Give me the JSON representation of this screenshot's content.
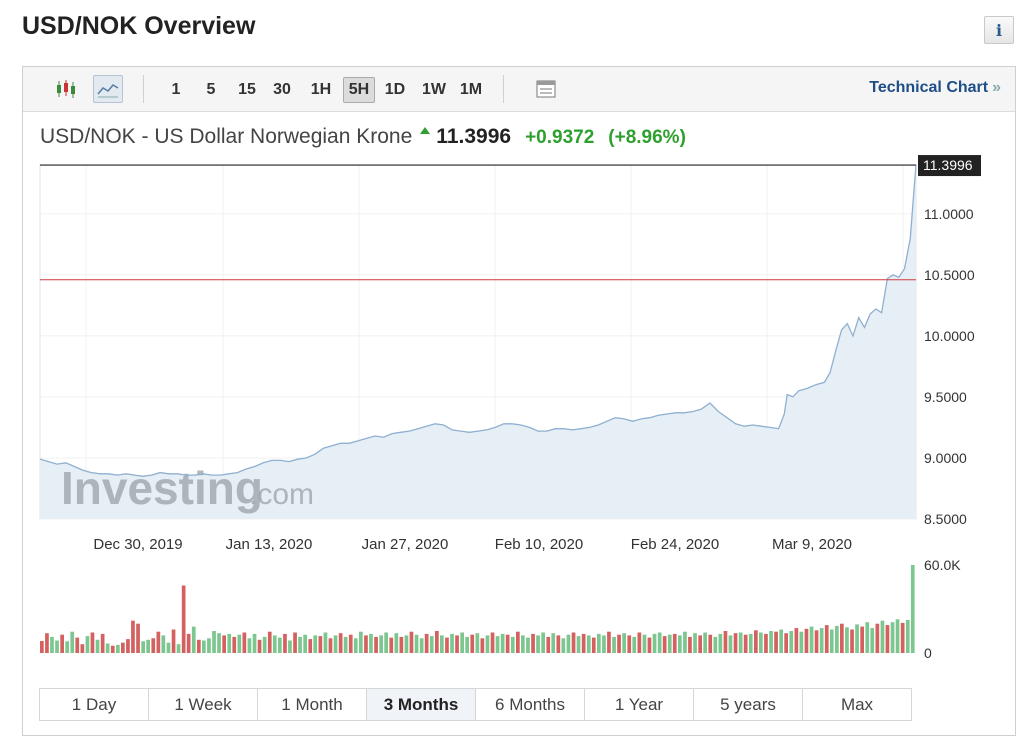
{
  "header": {
    "title": "USD/NOK Overview",
    "info_icon": "info-icon"
  },
  "toolbar": {
    "chart_types": [
      {
        "icon": "candlestick-icon",
        "active": false
      },
      {
        "icon": "line-chart-icon",
        "active": true
      }
    ],
    "intervals": [
      {
        "label": "1",
        "active": false
      },
      {
        "label": "5",
        "active": false
      },
      {
        "label": "15",
        "active": false
      },
      {
        "label": "30",
        "active": false
      },
      {
        "label": "1H",
        "active": false
      },
      {
        "label": "5H",
        "active": true
      },
      {
        "label": "1D",
        "active": false
      },
      {
        "label": "1W",
        "active": false
      },
      {
        "label": "1M",
        "active": false
      }
    ],
    "settings_icon": "table-settings-icon",
    "technical_link": "Technical Chart",
    "technical_link_suffix": "»"
  },
  "instrument": {
    "name": "USD/NOK - US Dollar Norwegian Krone",
    "last": "11.3996",
    "change": "+0.9372",
    "change_pct": "(+8.96%)"
  },
  "watermark": {
    "brand": "Investing",
    "suffix": ".com"
  },
  "colors": {
    "line": "#8fb0d0",
    "area": "#e6eef6",
    "ref_line": "#d23a3a",
    "up_vol": "#7cc68f",
    "down_vol": "#d4615f",
    "last_price_bg": "#222222"
  },
  "chart_data": {
    "type": "line",
    "title": "USD/NOK - US Dollar Norwegian Krone",
    "y_axis": {
      "ticks": [
        "11.0000",
        "10.5000",
        "10.0000",
        "9.5000",
        "9.0000",
        "8.5000"
      ],
      "min": 8.5,
      "max": 11.4
    },
    "x_axis": {
      "ticks": [
        "Dec 30, 2019",
        "Jan 13, 2020",
        "Jan 27, 2020",
        "Feb 10, 2020",
        "Feb 24, 2020",
        "Mar 9, 2020"
      ]
    },
    "last_price_label": "11.3996",
    "reference_value": 10.46,
    "grid": true,
    "series": [
      {
        "values": [
          [
            0,
            8.99
          ],
          [
            3,
            8.97
          ],
          [
            6,
            8.95
          ],
          [
            9,
            8.96
          ],
          [
            12,
            8.93
          ],
          [
            15,
            8.9
          ],
          [
            18,
            8.88
          ],
          [
            21,
            8.87
          ],
          [
            24,
            8.87
          ],
          [
            27,
            8.86
          ],
          [
            30,
            8.87
          ],
          [
            33,
            8.86
          ],
          [
            36,
            8.85
          ],
          [
            39,
            8.86
          ],
          [
            42,
            8.88
          ],
          [
            45,
            8.87
          ],
          [
            48,
            8.87
          ],
          [
            51,
            8.86
          ],
          [
            54,
            8.86
          ],
          [
            57,
            8.87
          ],
          [
            60,
            8.86
          ],
          [
            63,
            8.86
          ],
          [
            66,
            8.87
          ],
          [
            69,
            8.88
          ],
          [
            72,
            8.91
          ],
          [
            75,
            8.93
          ],
          [
            78,
            8.96
          ],
          [
            81,
            8.98
          ],
          [
            84,
            8.98
          ],
          [
            87,
            8.97
          ],
          [
            90,
            8.99
          ],
          [
            93,
            9.0
          ],
          [
            96,
            9.03
          ],
          [
            99,
            9.08
          ],
          [
            102,
            9.1
          ],
          [
            105,
            9.12
          ],
          [
            108,
            9.12
          ],
          [
            111,
            9.14
          ],
          [
            114,
            9.16
          ],
          [
            117,
            9.18
          ],
          [
            120,
            9.17
          ],
          [
            123,
            9.2
          ],
          [
            126,
            9.21
          ],
          [
            129,
            9.22
          ],
          [
            132,
            9.24
          ],
          [
            135,
            9.26
          ],
          [
            138,
            9.28
          ],
          [
            141,
            9.27
          ],
          [
            144,
            9.23
          ],
          [
            147,
            9.22
          ],
          [
            150,
            9.21
          ],
          [
            153,
            9.22
          ],
          [
            156,
            9.23
          ],
          [
            159,
            9.25
          ],
          [
            162,
            9.28
          ],
          [
            165,
            9.28
          ],
          [
            168,
            9.27
          ],
          [
            171,
            9.25
          ],
          [
            174,
            9.22
          ],
          [
            177,
            9.22
          ],
          [
            180,
            9.24
          ],
          [
            183,
            9.24
          ],
          [
            186,
            9.23
          ],
          [
            189,
            9.24
          ],
          [
            192,
            9.25
          ],
          [
            195,
            9.27
          ],
          [
            198,
            9.3
          ],
          [
            201,
            9.33
          ],
          [
            204,
            9.32
          ],
          [
            207,
            9.3
          ],
          [
            210,
            9.32
          ],
          [
            213,
            9.33
          ],
          [
            216,
            9.35
          ],
          [
            219,
            9.36
          ],
          [
            222,
            9.37
          ],
          [
            225,
            9.37
          ],
          [
            228,
            9.38
          ],
          [
            231,
            9.4
          ],
          [
            234,
            9.45
          ],
          [
            237,
            9.38
          ],
          [
            240,
            9.33
          ],
          [
            243,
            9.28
          ],
          [
            246,
            9.26
          ],
          [
            249,
            9.27
          ],
          [
            252,
            9.26
          ],
          [
            255,
            9.25
          ],
          [
            258,
            9.24
          ],
          [
            260,
            9.36
          ],
          [
            261,
            9.52
          ],
          [
            263,
            9.5
          ],
          [
            265,
            9.55
          ],
          [
            268,
            9.57
          ],
          [
            271,
            9.6
          ],
          [
            274,
            9.62
          ],
          [
            276,
            9.7
          ],
          [
            278,
            9.88
          ],
          [
            280,
            10.05
          ],
          [
            282,
            10.1
          ],
          [
            284,
            10.0
          ],
          [
            286,
            10.15
          ],
          [
            288,
            10.07
          ],
          [
            290,
            10.18
          ],
          [
            292,
            10.22
          ],
          [
            294,
            10.19
          ],
          [
            296,
            10.47
          ],
          [
            298,
            10.5
          ],
          [
            300,
            10.48
          ],
          [
            302,
            10.55
          ],
          [
            304,
            10.8
          ],
          [
            305,
            11.1
          ],
          [
            306,
            11.3996
          ]
        ]
      }
    ],
    "volume": {
      "axis": {
        "max_label": "60.0K",
        "min_label": "0",
        "max": 60000
      },
      "bars": [
        [
          8200,
          "d"
        ],
        [
          13500,
          "d"
        ],
        [
          11000,
          "u"
        ],
        [
          8500,
          "u"
        ],
        [
          12500,
          "d"
        ],
        [
          8000,
          "u"
        ],
        [
          14500,
          "u"
        ],
        [
          10500,
          "d"
        ],
        [
          6000,
          "d"
        ],
        [
          11500,
          "u"
        ],
        [
          14000,
          "d"
        ],
        [
          9000,
          "u"
        ],
        [
          13000,
          "d"
        ],
        [
          6500,
          "u"
        ],
        [
          5000,
          "d"
        ],
        [
          5500,
          "u"
        ],
        [
          7000,
          "d"
        ],
        [
          9500,
          "d"
        ],
        [
          22000,
          "d"
        ],
        [
          20000,
          "d"
        ],
        [
          8000,
          "u"
        ],
        [
          9000,
          "u"
        ],
        [
          10000,
          "d"
        ],
        [
          14500,
          "d"
        ],
        [
          12000,
          "u"
        ],
        [
          7000,
          "u"
        ],
        [
          16000,
          "d"
        ],
        [
          6000,
          "u"
        ],
        [
          46000,
          "d"
        ],
        [
          13000,
          "d"
        ],
        [
          18000,
          "u"
        ],
        [
          9000,
          "d"
        ],
        [
          8500,
          "u"
        ],
        [
          10000,
          "u"
        ],
        [
          15000,
          "u"
        ],
        [
          13500,
          "u"
        ],
        [
          12000,
          "d"
        ],
        [
          13000,
          "u"
        ],
        [
          11000,
          "d"
        ],
        [
          12500,
          "u"
        ],
        [
          14000,
          "d"
        ],
        [
          10000,
          "u"
        ],
        [
          13000,
          "u"
        ],
        [
          9000,
          "d"
        ],
        [
          11000,
          "u"
        ],
        [
          14500,
          "d"
        ],
        [
          12000,
          "u"
        ],
        [
          10500,
          "u"
        ],
        [
          13000,
          "d"
        ],
        [
          8500,
          "u"
        ],
        [
          14000,
          "d"
        ],
        [
          11000,
          "u"
        ],
        [
          12500,
          "u"
        ],
        [
          9500,
          "d"
        ],
        [
          12000,
          "u"
        ],
        [
          11500,
          "d"
        ],
        [
          14000,
          "u"
        ],
        [
          10000,
          "d"
        ],
        [
          12000,
          "u"
        ],
        [
          13500,
          "d"
        ],
        [
          11000,
          "u"
        ],
        [
          12500,
          "d"
        ],
        [
          10000,
          "u"
        ],
        [
          14500,
          "u"
        ],
        [
          12000,
          "d"
        ],
        [
          13000,
          "u"
        ],
        [
          11000,
          "d"
        ],
        [
          12000,
          "u"
        ],
        [
          14000,
          "u"
        ],
        [
          10500,
          "d"
        ],
        [
          13500,
          "u"
        ],
        [
          11000,
          "d"
        ],
        [
          12000,
          "u"
        ],
        [
          14500,
          "d"
        ],
        [
          12500,
          "u"
        ],
        [
          10000,
          "u"
        ],
        [
          13000,
          "d"
        ],
        [
          11500,
          "u"
        ],
        [
          15000,
          "d"
        ],
        [
          12000,
          "u"
        ],
        [
          10500,
          "d"
        ],
        [
          13000,
          "u"
        ],
        [
          12000,
          "d"
        ],
        [
          14000,
          "u"
        ],
        [
          11000,
          "u"
        ],
        [
          12500,
          "d"
        ],
        [
          13500,
          "u"
        ],
        [
          10000,
          "d"
        ],
        [
          12000,
          "u"
        ],
        [
          14000,
          "d"
        ],
        [
          11500,
          "u"
        ],
        [
          13000,
          "u"
        ],
        [
          12500,
          "d"
        ],
        [
          11000,
          "u"
        ],
        [
          14500,
          "d"
        ],
        [
          12000,
          "u"
        ],
        [
          10500,
          "u"
        ],
        [
          13000,
          "d"
        ],
        [
          12000,
          "u"
        ],
        [
          14000,
          "u"
        ],
        [
          11000,
          "d"
        ],
        [
          13500,
          "u"
        ],
        [
          12000,
          "d"
        ],
        [
          10000,
          "u"
        ],
        [
          12500,
          "u"
        ],
        [
          14000,
          "d"
        ],
        [
          11500,
          "u"
        ],
        [
          13000,
          "d"
        ],
        [
          12000,
          "u"
        ],
        [
          10500,
          "d"
        ],
        [
          13000,
          "u"
        ],
        [
          12000,
          "u"
        ],
        [
          14500,
          "d"
        ],
        [
          11000,
          "u"
        ],
        [
          12500,
          "d"
        ],
        [
          13500,
          "u"
        ],
        [
          12000,
          "d"
        ],
        [
          11000,
          "u"
        ],
        [
          14000,
          "d"
        ],
        [
          12500,
          "u"
        ],
        [
          10500,
          "d"
        ],
        [
          13000,
          "u"
        ],
        [
          14000,
          "u"
        ],
        [
          11500,
          "d"
        ],
        [
          12500,
          "u"
        ],
        [
          13000,
          "d"
        ],
        [
          12000,
          "u"
        ],
        [
          14500,
          "u"
        ],
        [
          11000,
          "d"
        ],
        [
          13500,
          "u"
        ],
        [
          12000,
          "d"
        ],
        [
          14000,
          "u"
        ],
        [
          12500,
          "d"
        ],
        [
          11000,
          "u"
        ],
        [
          13000,
          "u"
        ],
        [
          15000,
          "d"
        ],
        [
          12000,
          "u"
        ],
        [
          13500,
          "d"
        ],
        [
          14000,
          "u"
        ],
        [
          12500,
          "d"
        ],
        [
          13000,
          "u"
        ],
        [
          15500,
          "d"
        ],
        [
          14000,
          "u"
        ],
        [
          13000,
          "d"
        ],
        [
          15000,
          "u"
        ],
        [
          14500,
          "d"
        ],
        [
          16000,
          "u"
        ],
        [
          13500,
          "d"
        ],
        [
          15000,
          "u"
        ],
        [
          17000,
          "d"
        ],
        [
          14500,
          "u"
        ],
        [
          16500,
          "d"
        ],
        [
          18000,
          "u"
        ],
        [
          15500,
          "d"
        ],
        [
          17000,
          "u"
        ],
        [
          19000,
          "d"
        ],
        [
          16000,
          "u"
        ],
        [
          18500,
          "u"
        ],
        [
          20000,
          "d"
        ],
        [
          17500,
          "u"
        ],
        [
          16000,
          "d"
        ],
        [
          19500,
          "u"
        ],
        [
          18000,
          "d"
        ],
        [
          21000,
          "u"
        ],
        [
          17000,
          "u"
        ],
        [
          20000,
          "d"
        ],
        [
          22000,
          "u"
        ],
        [
          19000,
          "d"
        ],
        [
          21000,
          "u"
        ],
        [
          23000,
          "u"
        ],
        [
          20500,
          "d"
        ],
        [
          22500,
          "u"
        ],
        [
          60000,
          "u"
        ]
      ]
    }
  },
  "ranges": [
    {
      "label": "1 Day",
      "active": false
    },
    {
      "label": "1 Week",
      "active": false
    },
    {
      "label": "1 Month",
      "active": false
    },
    {
      "label": "3 Months",
      "active": true
    },
    {
      "label": "6 Months",
      "active": false
    },
    {
      "label": "1 Year",
      "active": false
    },
    {
      "label": "5 years",
      "active": false
    },
    {
      "label": "Max",
      "active": false
    }
  ]
}
